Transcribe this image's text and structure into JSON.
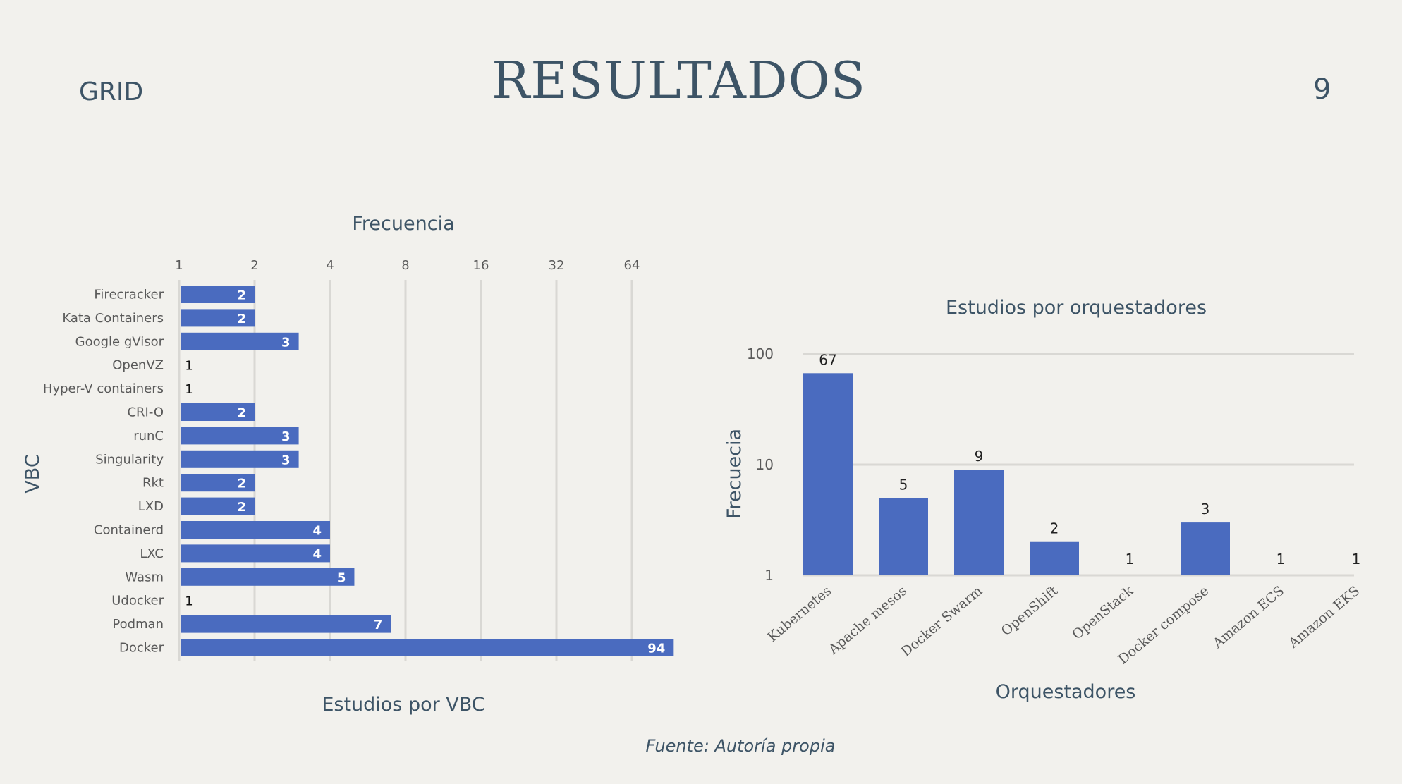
{
  "slide": {
    "header_label": "GRID",
    "title": "RESULTADOS",
    "page_number": "9",
    "source": "Fuente: Autoría propia"
  },
  "colors": {
    "bar": "#4a6bbf",
    "grid": "#d9d8d4",
    "text": "#3d5466",
    "tick": "#595959",
    "background": "#f2f1ed"
  },
  "chart_data": [
    {
      "type": "bar",
      "orientation": "horizontal",
      "title": "Estudios por VBC",
      "xlabel": "Frecuencia",
      "ylabel": "VBC",
      "x_scale": "log2",
      "x_ticks": [
        "1",
        "2",
        "4",
        "8",
        "16",
        "32",
        "64"
      ],
      "xlim": [
        1,
        128
      ],
      "grid": true,
      "categories": [
        "Firecracker",
        "Kata Containers",
        "Google gVisor",
        "OpenVZ",
        "Hyper-V containers",
        "CRI-O",
        "runC",
        "Singularity",
        "Rkt",
        "LXD",
        "Containerd",
        "LXC",
        "Wasm",
        "Udocker",
        "Podman",
        "Docker"
      ],
      "values": [
        2,
        2,
        3,
        1,
        1,
        2,
        3,
        3,
        2,
        2,
        4,
        4,
        5,
        1,
        7,
        94
      ]
    },
    {
      "type": "bar",
      "orientation": "vertical",
      "title": "Estudios por orquestadores",
      "xlabel": "Orquestadores",
      "ylabel": "Frecuecia",
      "y_scale": "log10",
      "y_ticks": [
        "1",
        "10",
        "100"
      ],
      "ylim": [
        1,
        100
      ],
      "grid": true,
      "categories": [
        "Kubernetes",
        "Apache mesos",
        "Docker Swarm",
        "OpenShift",
        "OpenStack",
        "Docker compose",
        "Amazon ECS",
        "Amazon EKS"
      ],
      "values": [
        67,
        5,
        9,
        2,
        1,
        3,
        1,
        1
      ]
    }
  ]
}
